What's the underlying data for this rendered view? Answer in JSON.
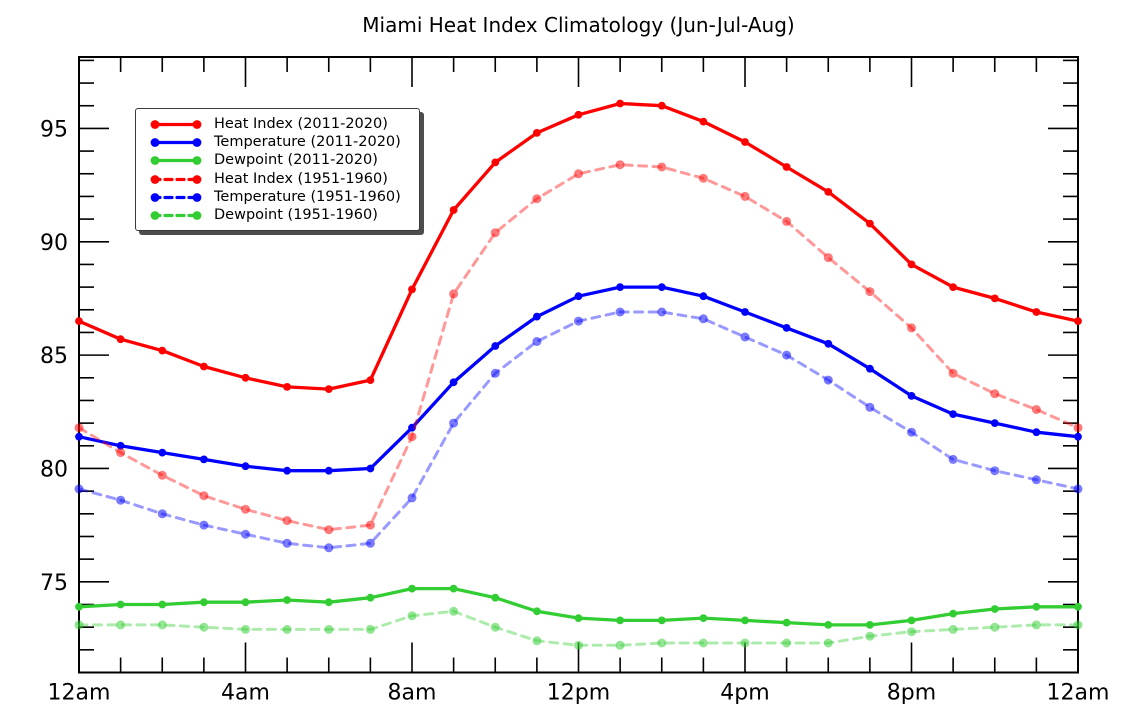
{
  "chart_data": {
    "type": "line",
    "title": "Miami Heat Index Climatology (Jun-Jul-Aug)",
    "xlabel": "",
    "ylabel": "",
    "x_unit": "hour of day",
    "x": [
      0,
      1,
      2,
      3,
      4,
      5,
      6,
      7,
      8,
      9,
      10,
      11,
      12,
      13,
      14,
      15,
      16,
      17,
      18,
      19,
      20,
      21,
      22,
      23,
      24
    ],
    "xlim": [
      0,
      24
    ],
    "ylim": [
      71,
      98.15
    ],
    "grid": false,
    "legend_position": "upper left",
    "x_major_ticks": [
      0,
      4,
      8,
      12,
      16,
      20,
      24
    ],
    "x_major_tick_labels": [
      "12am",
      "4am",
      "8am",
      "12pm",
      "4pm",
      "8pm",
      "12am"
    ],
    "x_minor_step_hours": 1,
    "y_major_ticks": [
      75,
      80,
      85,
      90,
      95
    ],
    "y_major_tick_labels": [
      "75",
      "80",
      "85",
      "90",
      "95"
    ],
    "y_minor_step": 1,
    "series": [
      {
        "name": "Heat Index (2011-2020)",
        "color": "#ff0000",
        "style": "solid",
        "alpha": 1.0,
        "values": [
          86.5,
          85.7,
          85.2,
          84.5,
          84.0,
          83.6,
          83.5,
          83.9,
          87.9,
          91.4,
          93.5,
          94.8,
          95.6,
          96.1,
          96.0,
          95.3,
          94.4,
          93.3,
          92.2,
          90.8,
          89.0,
          88.0,
          87.5,
          86.9,
          86.5
        ]
      },
      {
        "name": "Temperature (2011-2020)",
        "color": "#0000ff",
        "style": "solid",
        "alpha": 1.0,
        "values": [
          81.4,
          81.0,
          80.7,
          80.4,
          80.1,
          79.9,
          79.9,
          80.0,
          81.8,
          83.8,
          85.4,
          86.7,
          87.6,
          88.0,
          88.0,
          87.6,
          86.9,
          86.2,
          85.5,
          84.4,
          83.2,
          82.4,
          82.0,
          81.6,
          81.4
        ]
      },
      {
        "name": "Dewpoint (2011-2020)",
        "color": "#32cd32",
        "style": "solid",
        "alpha": 1.0,
        "values": [
          73.9,
          74.0,
          74.0,
          74.1,
          74.1,
          74.2,
          74.1,
          74.3,
          74.7,
          74.7,
          74.3,
          73.7,
          73.4,
          73.3,
          73.3,
          73.4,
          73.3,
          73.2,
          73.1,
          73.1,
          73.3,
          73.6,
          73.8,
          73.9,
          73.9
        ]
      },
      {
        "name": "Heat Index (1951-1960)",
        "color": "#ff0000",
        "style": "dashed",
        "alpha": 0.4,
        "values": [
          81.8,
          80.7,
          79.7,
          78.8,
          78.2,
          77.7,
          77.3,
          77.5,
          81.4,
          87.7,
          90.4,
          91.9,
          93.0,
          93.4,
          93.3,
          92.8,
          92.0,
          90.9,
          89.3,
          87.8,
          86.2,
          84.2,
          83.3,
          82.6,
          81.8
        ]
      },
      {
        "name": "Temperature (1951-1960)",
        "color": "#0000ff",
        "style": "dashed",
        "alpha": 0.4,
        "values": [
          79.1,
          78.6,
          78.0,
          77.5,
          77.1,
          76.7,
          76.5,
          76.7,
          78.7,
          82.0,
          84.2,
          85.6,
          86.5,
          86.9,
          86.9,
          86.6,
          85.8,
          85.0,
          83.9,
          82.7,
          81.6,
          80.4,
          79.9,
          79.5,
          79.1
        ]
      },
      {
        "name": "Dewpoint (1951-1960)",
        "color": "#32cd32",
        "style": "dashed",
        "alpha": 0.4,
        "values": [
          73.1,
          73.1,
          73.1,
          73.0,
          72.9,
          72.9,
          72.9,
          72.9,
          73.5,
          73.7,
          73.0,
          72.4,
          72.2,
          72.2,
          72.3,
          72.3,
          72.3,
          72.3,
          72.3,
          72.6,
          72.8,
          72.9,
          73.0,
          73.1,
          73.1
        ]
      }
    ]
  },
  "style": {
    "axis_color": "#000000",
    "text_color": "#000000",
    "legend_border_color": "#3a3a3a",
    "legend_shadow_color": "#4d4d4d",
    "background": "#ffffff"
  }
}
